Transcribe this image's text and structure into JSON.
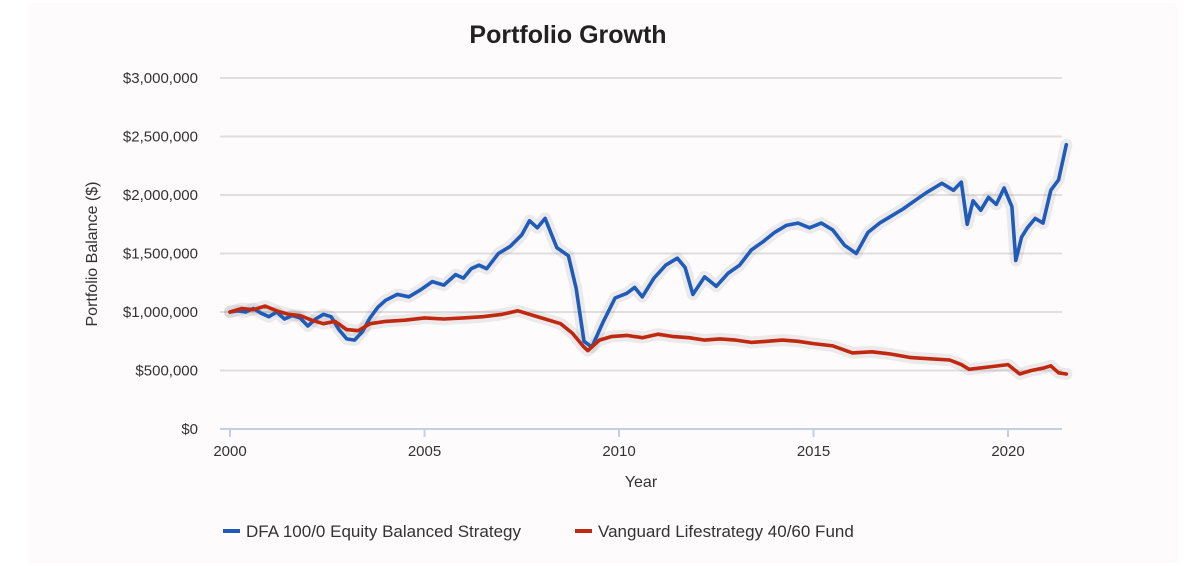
{
  "chart_data": {
    "type": "line",
    "title": "Portfolio Growth",
    "xlabel": "Year",
    "ylabel": "Portfolio Balance ($)",
    "xlim": [
      2000,
      2021.5
    ],
    "ylim": [
      0,
      3000000
    ],
    "grid": true,
    "legend_position": "bottom",
    "x_ticks": [
      {
        "value": 2000,
        "label": "2000"
      },
      {
        "value": 2005,
        "label": "2005"
      },
      {
        "value": 2010,
        "label": "2010"
      },
      {
        "value": 2015,
        "label": "2015"
      },
      {
        "value": 2020,
        "label": "2020"
      }
    ],
    "y_ticks": [
      {
        "value": 0,
        "label": "$0"
      },
      {
        "value": 500000,
        "label": "$500,000"
      },
      {
        "value": 1000000,
        "label": "$1,000,000"
      },
      {
        "value": 1500000,
        "label": "$1,500,000"
      },
      {
        "value": 2000000,
        "label": "$2,000,000"
      },
      {
        "value": 2500000,
        "label": "$2,500,000"
      },
      {
        "value": 3000000,
        "label": "$3,000,000"
      }
    ],
    "series": [
      {
        "name": "DFA 100/0 Equity Balanced Strategy",
        "color": "#1f5bb8",
        "x": [
          2000.0,
          2000.2,
          2000.4,
          2000.6,
          2000.8,
          2001.0,
          2001.2,
          2001.4,
          2001.6,
          2001.8,
          2002.0,
          2002.2,
          2002.4,
          2002.6,
          2002.8,
          2003.0,
          2003.2,
          2003.4,
          2003.6,
          2003.8,
          2004.0,
          2004.3,
          2004.6,
          2004.9,
          2005.2,
          2005.5,
          2005.8,
          2006.0,
          2006.2,
          2006.4,
          2006.6,
          2006.9,
          2007.2,
          2007.5,
          2007.7,
          2007.9,
          2008.1,
          2008.4,
          2008.7,
          2008.9,
          2009.1,
          2009.3,
          2009.6,
          2009.9,
          2010.2,
          2010.4,
          2010.6,
          2010.9,
          2011.2,
          2011.5,
          2011.7,
          2011.9,
          2012.2,
          2012.5,
          2012.8,
          2013.1,
          2013.4,
          2013.7,
          2014.0,
          2014.3,
          2014.6,
          2014.9,
          2015.2,
          2015.5,
          2015.8,
          2016.1,
          2016.4,
          2016.7,
          2017.0,
          2017.3,
          2017.6,
          2017.9,
          2018.1,
          2018.3,
          2018.6,
          2018.8,
          2018.95,
          2019.1,
          2019.3,
          2019.5,
          2019.7,
          2019.9,
          2020.1,
          2020.2,
          2020.35,
          2020.5,
          2020.7,
          2020.9,
          2021.1,
          2021.3,
          2021.5
        ],
        "values": [
          1000000,
          1010000,
          1000000,
          1030000,
          990000,
          960000,
          1000000,
          940000,
          970000,
          950000,
          880000,
          940000,
          980000,
          960000,
          850000,
          770000,
          760000,
          830000,
          950000,
          1040000,
          1100000,
          1150000,
          1130000,
          1190000,
          1260000,
          1230000,
          1320000,
          1290000,
          1370000,
          1400000,
          1370000,
          1500000,
          1560000,
          1660000,
          1780000,
          1720000,
          1800000,
          1550000,
          1480000,
          1200000,
          750000,
          700000,
          920000,
          1120000,
          1160000,
          1210000,
          1130000,
          1290000,
          1400000,
          1460000,
          1380000,
          1150000,
          1300000,
          1220000,
          1330000,
          1400000,
          1530000,
          1600000,
          1680000,
          1740000,
          1760000,
          1720000,
          1760000,
          1700000,
          1570000,
          1500000,
          1680000,
          1760000,
          1820000,
          1880000,
          1950000,
          2020000,
          2060000,
          2100000,
          2040000,
          2110000,
          1750000,
          1950000,
          1870000,
          1980000,
          1920000,
          2060000,
          1900000,
          1440000,
          1640000,
          1720000,
          1800000,
          1760000,
          2040000,
          2130000,
          2430000
        ]
      },
      {
        "name": "Vanguard Lifestrategy 40/60 Fund",
        "color": "#c0280f",
        "x": [
          2000.0,
          2000.3,
          2000.6,
          2000.9,
          2001.2,
          2001.5,
          2001.8,
          2002.1,
          2002.4,
          2002.7,
          2003.0,
          2003.3,
          2003.6,
          2004.0,
          2004.5,
          2005.0,
          2005.5,
          2006.0,
          2006.5,
          2007.0,
          2007.4,
          2007.8,
          2008.1,
          2008.5,
          2008.8,
          2009.1,
          2009.2,
          2009.5,
          2009.8,
          2010.2,
          2010.6,
          2011.0,
          2011.4,
          2011.8,
          2012.2,
          2012.6,
          2013.0,
          2013.4,
          2013.8,
          2014.2,
          2014.6,
          2015.0,
          2015.5,
          2016.0,
          2016.5,
          2017.0,
          2017.5,
          2018.0,
          2018.5,
          2018.8,
          2019.0,
          2019.5,
          2020.0,
          2020.3,
          2020.6,
          2020.9,
          2021.1,
          2021.3,
          2021.5
        ],
        "values": [
          1000000,
          1030000,
          1020000,
          1050000,
          1010000,
          980000,
          970000,
          930000,
          900000,
          920000,
          850000,
          840000,
          900000,
          920000,
          930000,
          950000,
          940000,
          950000,
          960000,
          980000,
          1010000,
          970000,
          940000,
          900000,
          820000,
          700000,
          670000,
          760000,
          790000,
          800000,
          780000,
          810000,
          790000,
          780000,
          760000,
          770000,
          760000,
          740000,
          750000,
          760000,
          750000,
          730000,
          710000,
          650000,
          660000,
          640000,
          610000,
          600000,
          590000,
          550000,
          510000,
          530000,
          550000,
          470000,
          500000,
          520000,
          540000,
          480000,
          470000
        ]
      }
    ]
  }
}
